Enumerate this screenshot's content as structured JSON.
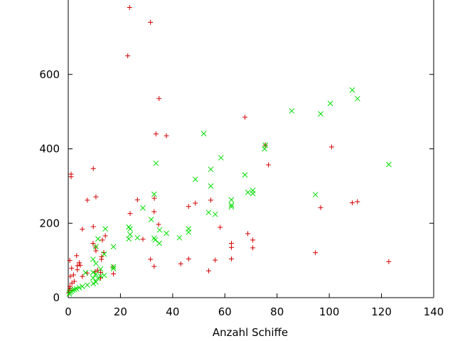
{
  "chart_data": {
    "type": "scatter",
    "xlabel": "Anzahl Schiffe",
    "ylabel": "",
    "title": "",
    "xlim": [
      0,
      140
    ],
    "ylim": [
      0,
      800
    ],
    "x_ticks": [
      0,
      20,
      40,
      60,
      80,
      100,
      120,
      140
    ],
    "y_ticks": [
      0,
      200,
      400,
      600
    ],
    "grid": false,
    "legend": "none",
    "series": [
      {
        "marker": "plus",
        "color": "#d40000",
        "points": [
          [
            23.5,
            780
          ],
          [
            31.5,
            740
          ],
          [
            22.8,
            650
          ],
          [
            34.8,
            535
          ],
          [
            67.7,
            485
          ],
          [
            33.6,
            440
          ],
          [
            37.6,
            435
          ],
          [
            75.5,
            410
          ],
          [
            100.9,
            405
          ],
          [
            76.7,
            357
          ],
          [
            9.6,
            347
          ],
          [
            1.1,
            332
          ],
          [
            1.1,
            325
          ],
          [
            10.6,
            271
          ],
          [
            26.5,
            263
          ],
          [
            7.3,
            262
          ],
          [
            33.0,
            267
          ],
          [
            54.6,
            262
          ],
          [
            110.8,
            258
          ],
          [
            108.8,
            255
          ],
          [
            48.7,
            254
          ],
          [
            46.1,
            245
          ],
          [
            96.7,
            242
          ],
          [
            23.7,
            226
          ],
          [
            32.9,
            231
          ],
          [
            34.6,
            197
          ],
          [
            58.2,
            189
          ],
          [
            9.6,
            191
          ],
          [
            5.4,
            184
          ],
          [
            14.2,
            166
          ],
          [
            28.6,
            157
          ],
          [
            68.8,
            172
          ],
          [
            70.7,
            155
          ],
          [
            62.5,
            146
          ],
          [
            9.5,
            146
          ],
          [
            13.1,
            155
          ],
          [
            62.5,
            135
          ],
          [
            70.7,
            134
          ],
          [
            10.4,
            136
          ],
          [
            10.6,
            126
          ],
          [
            94.7,
            121
          ],
          [
            13.6,
            121
          ],
          [
            12.8,
            110
          ],
          [
            31.5,
            103
          ],
          [
            46.1,
            104
          ],
          [
            62.5,
            104
          ],
          [
            56.3,
            101
          ],
          [
            3.2,
            113
          ],
          [
            12.7,
            103
          ],
          [
            0.6,
            100
          ],
          [
            122.8,
            97
          ],
          [
            43.1,
            91
          ],
          [
            4.2,
            94
          ],
          [
            4.6,
            87
          ],
          [
            3.5,
            86
          ],
          [
            1.3,
            79
          ],
          [
            32.9,
            84
          ],
          [
            17.1,
            82
          ],
          [
            11.2,
            74
          ],
          [
            3.5,
            75
          ],
          [
            53.8,
            72
          ],
          [
            10.3,
            70
          ],
          [
            12.4,
            68
          ],
          [
            7.2,
            66
          ],
          [
            17.3,
            64
          ],
          [
            2.0,
            61
          ],
          [
            0.8,
            57
          ],
          [
            5.4,
            57
          ],
          [
            12.4,
            53
          ],
          [
            2.3,
            44
          ],
          [
            1.4,
            39
          ],
          [
            0.6,
            30
          ],
          [
            0.7,
            25
          ],
          [
            0.4,
            20
          ],
          [
            0.2,
            13
          ]
        ]
      },
      {
        "marker": "cross",
        "color": "#00dd00",
        "points": [
          [
            108.8,
            558
          ],
          [
            110.8,
            535
          ],
          [
            100.4,
            522
          ],
          [
            85.6,
            502
          ],
          [
            96.7,
            494
          ],
          [
            51.9,
            441
          ],
          [
            75.5,
            410
          ],
          [
            75.2,
            400
          ],
          [
            58.5,
            376
          ],
          [
            33.6,
            361
          ],
          [
            122.8,
            358
          ],
          [
            54.6,
            345
          ],
          [
            67.7,
            330
          ],
          [
            48.7,
            318
          ],
          [
            54.6,
            300
          ],
          [
            70.7,
            288
          ],
          [
            68.8,
            283
          ],
          [
            70.7,
            280
          ],
          [
            32.9,
            278
          ],
          [
            94.7,
            277
          ],
          [
            62.5,
            263
          ],
          [
            62.5,
            249
          ],
          [
            62.5,
            244
          ],
          [
            28.6,
            241
          ],
          [
            53.8,
            229
          ],
          [
            56.3,
            224
          ],
          [
            31.8,
            210
          ],
          [
            23.2,
            190
          ],
          [
            14.2,
            185
          ],
          [
            23.7,
            185
          ],
          [
            46.1,
            185
          ],
          [
            35.0,
            182
          ],
          [
            46.1,
            176
          ],
          [
            37.6,
            173
          ],
          [
            23.7,
            170
          ],
          [
            42.6,
            161
          ],
          [
            26.5,
            161
          ],
          [
            32.9,
            160
          ],
          [
            11.4,
            158
          ],
          [
            23.2,
            158
          ],
          [
            33.3,
            155
          ],
          [
            34.9,
            146
          ],
          [
            17.3,
            137
          ],
          [
            10.6,
            137
          ],
          [
            13.8,
            117
          ],
          [
            9.5,
            103
          ],
          [
            10.6,
            92
          ],
          [
            17.3,
            83
          ],
          [
            17.3,
            78
          ],
          [
            12.4,
            77
          ],
          [
            9.5,
            68
          ],
          [
            6.6,
            67
          ],
          [
            10.6,
            63
          ],
          [
            13.8,
            60
          ],
          [
            12.4,
            58
          ],
          [
            9.5,
            53
          ],
          [
            11.4,
            52
          ],
          [
            10.6,
            42
          ],
          [
            9.6,
            38
          ],
          [
            7.3,
            34
          ],
          [
            5.4,
            30
          ],
          [
            4.2,
            27
          ],
          [
            3.2,
            24
          ],
          [
            2.4,
            22
          ],
          [
            1.7,
            20
          ],
          [
            1.1,
            17
          ],
          [
            0.6,
            14
          ],
          [
            0.4,
            10
          ]
        ]
      }
    ]
  }
}
